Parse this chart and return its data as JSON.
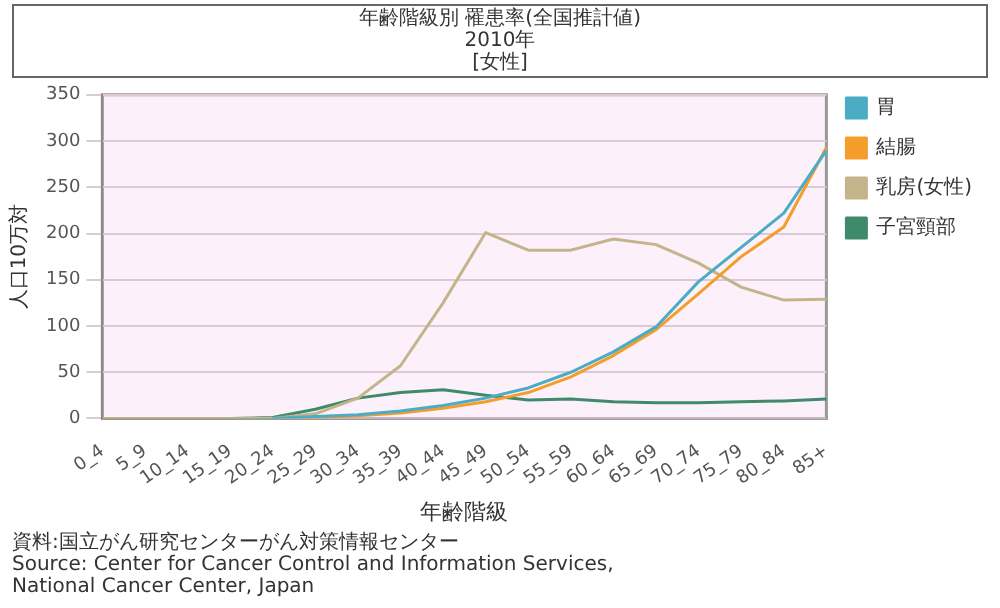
{
  "chart_data": {
    "type": "line",
    "title": "年齢階級別 罹患率(全国推計値)",
    "subtitle": "2010年\n[女性]",
    "xlabel": "年齢階級",
    "ylabel": "人口10万対",
    "categories": [
      "0_4",
      "5_9",
      "10_14",
      "15_19",
      "20_24",
      "25_29",
      "30_34",
      "35_39",
      "40_44",
      "45_49",
      "50_54",
      "55_59",
      "60_64",
      "65_69",
      "70_74",
      "75_79",
      "80_84",
      "85+"
    ],
    "series": [
      {
        "name": "胃",
        "color": "#4bacc6",
        "values": [
          null,
          null,
          null,
          null,
          0,
          2,
          4,
          8,
          14,
          22,
          33,
          50,
          72,
          99,
          148,
          185,
          222,
          290
        ]
      },
      {
        "name": "結腸",
        "color": "#f59d2a",
        "values": [
          null,
          null,
          null,
          null,
          0,
          1,
          3,
          6,
          11,
          18,
          28,
          45,
          68,
          96,
          135,
          175,
          207,
          293
        ]
      },
      {
        "name": "乳房(女性)",
        "color": "#c4b48a",
        "values": [
          0,
          0,
          0,
          0,
          0,
          5,
          22,
          57,
          125,
          201,
          182,
          182,
          194,
          188,
          168,
          142,
          128,
          129
        ]
      },
      {
        "name": "子宮頸部",
        "color": "#3f8a6a",
        "values": [
          0,
          0,
          0,
          0,
          1,
          10,
          22,
          28,
          31,
          25,
          20,
          21,
          18,
          17,
          17,
          18,
          19,
          21
        ]
      }
    ],
    "ylim": [
      0,
      350
    ],
    "yticks": [
      0,
      50,
      100,
      150,
      200,
      250,
      300,
      350
    ],
    "grid": "y",
    "legend": "right",
    "marker": "none",
    "line_style": "solid",
    "annotations": [
      "資料:国立がん研究センターがん対策情報センター",
      "Source: Center for Cancer Control and Information Services,\nNational Cancer Center, Japan"
    ]
  }
}
